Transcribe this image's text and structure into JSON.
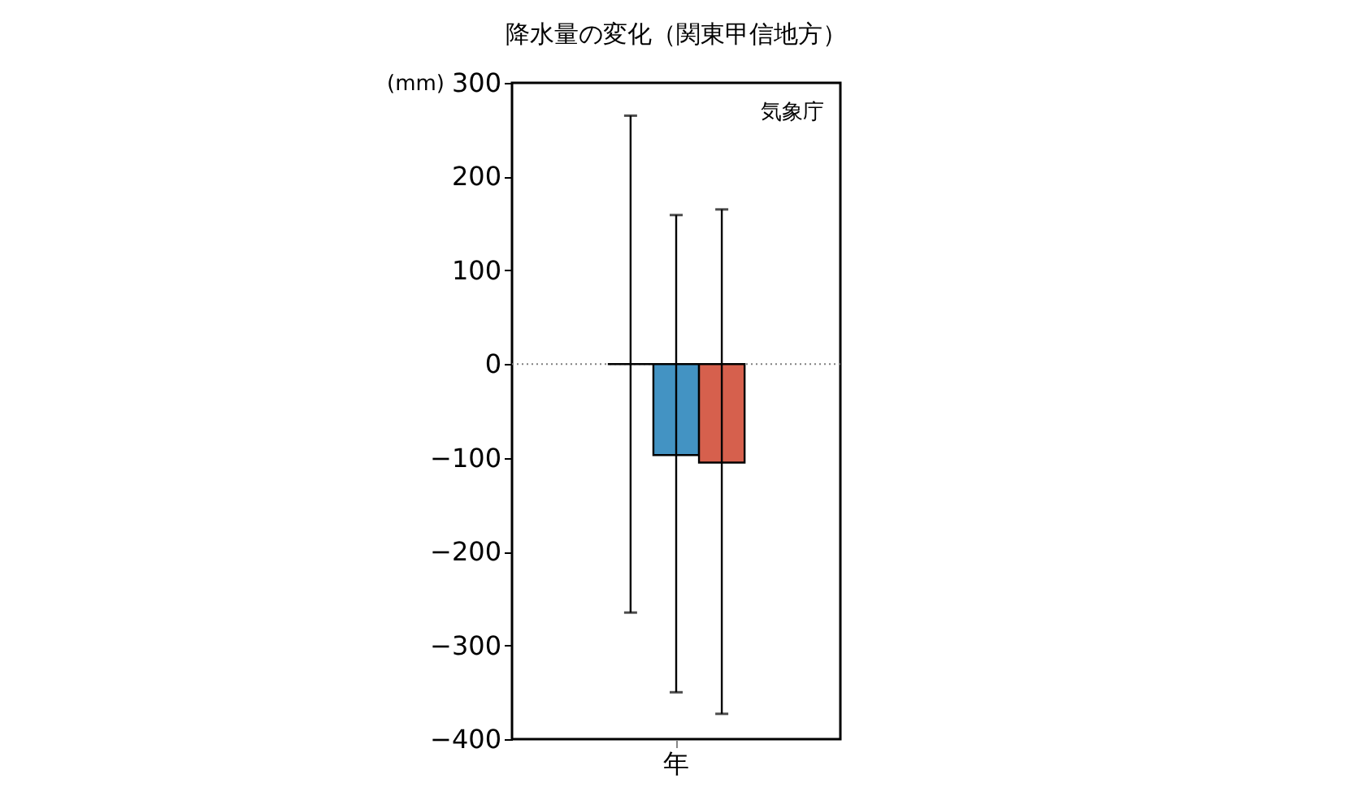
{
  "chart_data": {
    "type": "bar",
    "title": "降水量の変化（関東甲信地方）",
    "ylabel": "(mm)",
    "categories": [
      "年"
    ],
    "series": [
      {
        "color": "#000000",
        "values": [
          0
        ],
        "errors": [
          [
            -265,
            265
          ]
        ]
      },
      {
        "color": "#4393c3",
        "values": [
          -97
        ],
        "errors": [
          [
            -350,
            159
          ]
        ]
      },
      {
        "color": "#d6604d",
        "values": [
          -105
        ],
        "errors": [
          [
            -373,
            165
          ]
        ]
      }
    ],
    "ylim": [
      -400,
      300
    ],
    "yticks": [
      -400,
      -300,
      -200,
      -100,
      0,
      100,
      200,
      300
    ],
    "ref_lines": [
      {
        "axis": "y",
        "value": 0,
        "color": "#808080",
        "line_style": "dotted"
      }
    ],
    "annotations": [
      "気象庁"
    ],
    "grid": false
  }
}
